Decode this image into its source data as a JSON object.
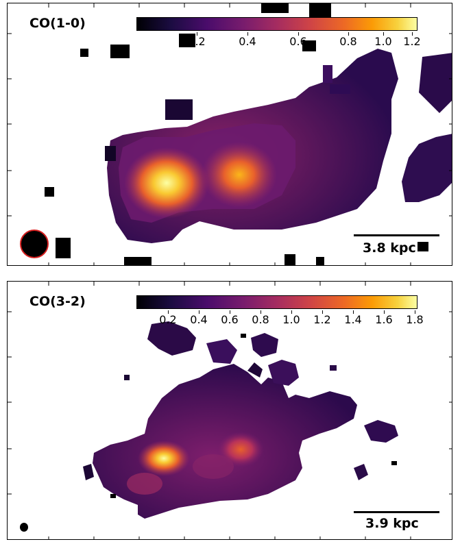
{
  "panels": [
    {
      "title": "CO(1-0)",
      "colorbar_ticks": [
        "0.2",
        "0.4",
        "0.6",
        "0.8",
        "1.0",
        "1.2"
      ],
      "scale_label": "3.8 kpc",
      "beam_outline_color": "#d62020"
    },
    {
      "title": "CO(3-2)",
      "colorbar_ticks": [
        "0.2",
        "0.4",
        "0.6",
        "0.8",
        "1.0",
        "1.2",
        "1.4",
        "1.6",
        "1.8"
      ],
      "scale_label": "3.9 kpc",
      "beam_outline_color": "#000000"
    }
  ],
  "colormap": "inferno"
}
